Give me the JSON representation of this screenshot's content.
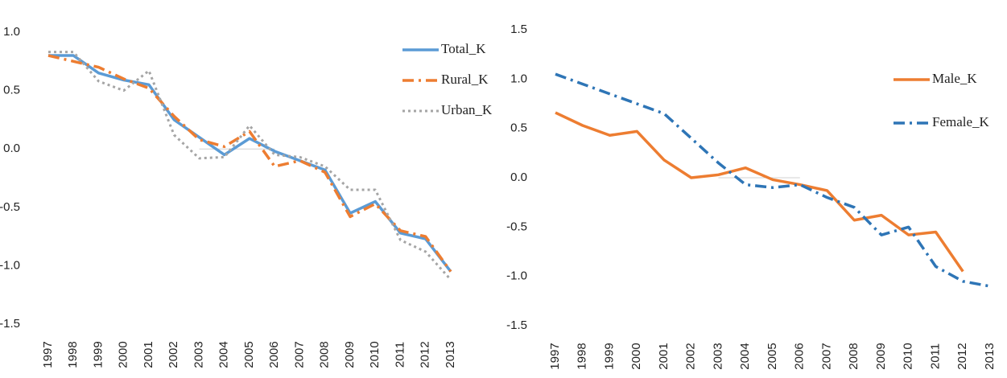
{
  "chart_data": [
    {
      "type": "line",
      "legend": "upper right",
      "categories": [
        "1997",
        "1998",
        "1999",
        "2000",
        "2001",
        "2002",
        "2003",
        "2004",
        "2005",
        "2006",
        "2007",
        "2008",
        "2009",
        "2010",
        "2011",
        "2012",
        "2013"
      ],
      "ylim": [
        -1.5,
        1.0
      ],
      "yticks": [
        {
          "value": 1.0,
          "label": "1.0"
        },
        0.5,
        {
          "value": 0,
          "label": "0.0"
        },
        -0.5,
        {
          "value": -1.0,
          "label": "-1.0"
        },
        -1.5
      ],
      "series": [
        {
          "name": "Total_K",
          "color": "#5b9bd5",
          "style": "solid",
          "values": [
            0.8,
            0.8,
            0.65,
            0.59,
            0.55,
            0.25,
            0.1,
            -0.05,
            0.09,
            -0.02,
            -0.1,
            -0.18,
            -0.55,
            -0.45,
            -0.72,
            -0.77,
            -1.05
          ]
        },
        {
          "name": "Rural_K",
          "color": "#ed7d31",
          "style": "dashdot",
          "values": [
            0.8,
            0.75,
            0.7,
            0.6,
            0.52,
            0.28,
            0.08,
            0.02,
            0.15,
            -0.15,
            -0.1,
            -0.2,
            -0.58,
            -0.47,
            -0.7,
            -0.75,
            -1.05
          ]
        },
        {
          "name": "Urban_K",
          "color": "#a5a5a5",
          "style": "dotted",
          "values": [
            0.83,
            0.83,
            0.58,
            0.5,
            0.67,
            0.12,
            -0.08,
            -0.07,
            0.2,
            -0.05,
            -0.07,
            -0.15,
            -0.35,
            -0.35,
            -0.78,
            -0.88,
            -1.12
          ]
        }
      ]
    },
    {
      "type": "line",
      "legend": "right",
      "categories": [
        "1997",
        "1998",
        "1999",
        "2000",
        "2001",
        "2002",
        "2003",
        "2004",
        "2005",
        "2006",
        "2007",
        "2008",
        "2009",
        "2010",
        "2011",
        "2012",
        "2013"
      ],
      "ylim": [
        -1.5,
        1.5
      ],
      "yticks": [
        1.5,
        {
          "value": 1.0,
          "label": "1.0"
        },
        0.5,
        {
          "value": 0,
          "label": "0.0"
        },
        -0.5,
        {
          "value": -1.0,
          "label": "-1.0"
        },
        -1.5
      ],
      "series": [
        {
          "name": "Male_K",
          "color": "#ed7d31",
          "style": "solid",
          "values": [
            0.66,
            0.53,
            0.43,
            0.47,
            0.18,
            0.0,
            0.03,
            0.1,
            -0.02,
            -0.07,
            -0.13,
            -0.43,
            -0.38,
            -0.58,
            -0.55,
            -0.95,
            null
          ]
        },
        {
          "name": "Female_K",
          "color": "#2e75b6",
          "style": "dashdot",
          "values": [
            1.05,
            0.95,
            0.85,
            0.75,
            0.65,
            0.4,
            0.15,
            -0.07,
            -0.1,
            -0.07,
            -0.2,
            -0.3,
            -0.58,
            -0.5,
            -0.9,
            -1.05,
            -1.1
          ]
        }
      ]
    }
  ]
}
